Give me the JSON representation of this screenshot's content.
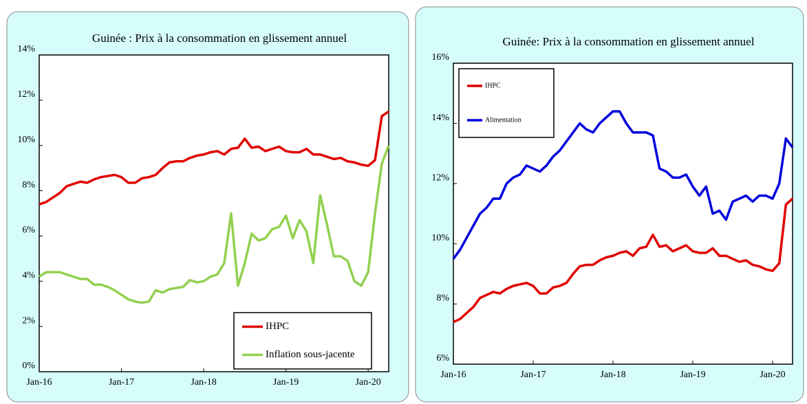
{
  "chart_data": [
    {
      "type": "line",
      "title": "Guinée : Prix à la consommation en glissement annuel",
      "categories": [
        "Jan-16",
        null,
        null,
        null,
        null,
        null,
        null,
        null,
        null,
        null,
        null,
        null,
        "Jan-17",
        null,
        null,
        null,
        null,
        null,
        null,
        null,
        null,
        null,
        null,
        null,
        "Jan-18",
        null,
        null,
        null,
        null,
        null,
        null,
        null,
        null,
        null,
        null,
        null,
        "Jan-19",
        null,
        null,
        null,
        null,
        null,
        null,
        null,
        null,
        null,
        null,
        null,
        "Jan-20",
        null,
        null,
        null
      ],
      "ylim": [
        0,
        14
      ],
      "yticks": [
        {
          "value": 0,
          "label": "0%"
        },
        {
          "value": 2,
          "label": "2%"
        },
        {
          "value": 4,
          "label": "4%"
        },
        {
          "value": 6,
          "label": "6%"
        },
        {
          "value": 8,
          "label": "8%"
        },
        {
          "value": 10,
          "label": "10%"
        },
        {
          "value": 12,
          "label": "12%"
        },
        {
          "value": 14,
          "label": "14%"
        }
      ],
      "legend": "lower right",
      "series": [
        {
          "name": "IHPC",
          "color": "#e00000",
          "values": [
            7.4,
            7.5,
            7.7,
            7.9,
            8.2,
            8.3,
            8.4,
            8.35,
            8.5,
            8.6,
            8.65,
            8.7,
            8.6,
            8.35,
            8.35,
            8.55,
            8.6,
            8.7,
            9.0,
            9.25,
            9.3,
            9.3,
            9.45,
            9.55,
            9.6,
            9.7,
            9.75,
            9.6,
            9.85,
            9.9,
            10.3,
            9.9,
            9.95,
            9.75,
            9.85,
            9.95,
            9.75,
            9.7,
            9.7,
            9.85,
            9.6,
            9.6,
            9.5,
            9.4,
            9.45,
            9.3,
            9.25,
            9.15,
            9.1,
            9.35,
            11.3,
            11.5
          ]
        },
        {
          "name": "Inflation sous-jacente",
          "color": "#92d050",
          "values": [
            4.2,
            4.4,
            4.4,
            4.4,
            4.3,
            4.2,
            4.1,
            4.1,
            3.85,
            3.85,
            3.75,
            3.6,
            3.4,
            3.2,
            3.1,
            3.05,
            3.1,
            3.6,
            3.5,
            3.65,
            3.7,
            3.75,
            4.05,
            3.95,
            4.0,
            4.2,
            4.3,
            4.8,
            7.0,
            3.8,
            4.8,
            6.1,
            5.8,
            5.9,
            6.3,
            6.4,
            6.9,
            5.9,
            6.7,
            6.2,
            4.8,
            7.8,
            6.5,
            5.1,
            5.1,
            4.9,
            4.0,
            3.8,
            4.4,
            7.0,
            9.2,
            10.0
          ]
        }
      ]
    },
    {
      "type": "line",
      "title": "Guinée: Prix à la consommation en glissement annuel",
      "categories": [
        "Jan-16",
        null,
        null,
        null,
        null,
        null,
        null,
        null,
        null,
        null,
        null,
        null,
        "Jan-17",
        null,
        null,
        null,
        null,
        null,
        null,
        null,
        null,
        null,
        null,
        null,
        "Jan-18",
        null,
        null,
        null,
        null,
        null,
        null,
        null,
        null,
        null,
        null,
        null,
        "Jan-19",
        null,
        null,
        null,
        null,
        null,
        null,
        null,
        null,
        null,
        null,
        null,
        "Jan-20",
        null,
        null,
        null
      ],
      "ylim": [
        6,
        16
      ],
      "yticks": [
        {
          "value": 6,
          "label": "6%"
        },
        {
          "value": 8,
          "label": "8%"
        },
        {
          "value": 10,
          "label": "10%"
        },
        {
          "value": 12,
          "label": "12%"
        },
        {
          "value": 14,
          "label": "14%"
        },
        {
          "value": 16,
          "label": "16%"
        }
      ],
      "legend": "upper left",
      "series": [
        {
          "name": "IHPC",
          "color": "#e00000",
          "values": [
            7.4,
            7.5,
            7.7,
            7.9,
            8.2,
            8.3,
            8.4,
            8.35,
            8.5,
            8.6,
            8.65,
            8.7,
            8.6,
            8.35,
            8.35,
            8.55,
            8.6,
            8.7,
            9.0,
            9.25,
            9.3,
            9.3,
            9.45,
            9.55,
            9.6,
            9.7,
            9.75,
            9.6,
            9.85,
            9.9,
            10.3,
            9.9,
            9.95,
            9.75,
            9.85,
            9.95,
            9.75,
            9.7,
            9.7,
            9.85,
            9.6,
            9.6,
            9.5,
            9.4,
            9.45,
            9.3,
            9.25,
            9.15,
            9.1,
            9.35,
            11.3,
            11.5
          ]
        },
        {
          "name": "Alimentation",
          "color": "#0000dd",
          "values": [
            9.5,
            9.8,
            10.2,
            10.6,
            11.0,
            11.2,
            11.5,
            11.5,
            12.0,
            12.2,
            12.3,
            12.6,
            12.5,
            12.4,
            12.6,
            12.9,
            13.1,
            13.4,
            13.7,
            14.0,
            13.8,
            13.7,
            14.0,
            14.2,
            14.4,
            14.4,
            14.0,
            13.7,
            13.7,
            13.7,
            13.6,
            12.5,
            12.4,
            12.2,
            12.2,
            12.3,
            11.9,
            11.6,
            11.9,
            11.0,
            11.1,
            10.8,
            11.4,
            11.5,
            11.6,
            11.4,
            11.6,
            11.6,
            11.5,
            12.0,
            13.5,
            13.2
          ]
        }
      ]
    }
  ]
}
